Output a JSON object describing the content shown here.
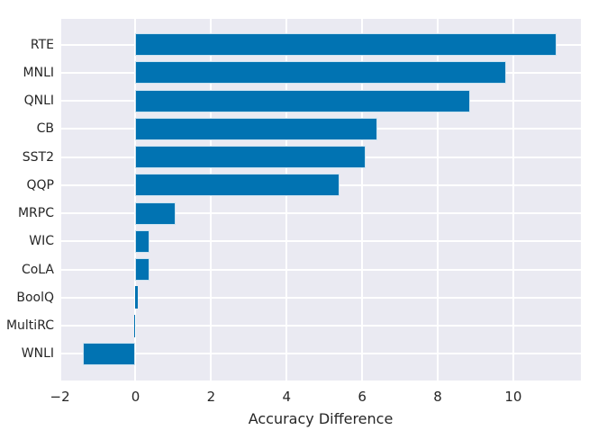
{
  "figure": {
    "background_color": "#ffffff",
    "plot_bg_color": "#eaeaf2",
    "grid_color": "#ffffff",
    "bar_color": "#0173b2",
    "bar_edge_color": "rgba(255,255,255,0.8)",
    "text_color": "#262626"
  },
  "chart_data": {
    "type": "bar",
    "orientation": "horizontal",
    "title": "",
    "xlabel": "Accuracy Difference",
    "ylabel": "",
    "categories": [
      "RTE",
      "MNLI",
      "QNLI",
      "CB",
      "SST2",
      "QQP",
      "MRPC",
      "WIC",
      "CoLA",
      "BoolQ",
      "MultiRC",
      "WNLI"
    ],
    "values": [
      11.15,
      9.8,
      8.85,
      6.4,
      6.1,
      5.4,
      1.05,
      0.38,
      0.36,
      0.07,
      -0.03,
      -1.39
    ],
    "x_ticks": [
      -2,
      0,
      2,
      4,
      6,
      8,
      10
    ],
    "x_tick_labels": [
      "−2",
      "0",
      "2",
      "4",
      "6",
      "8",
      "10"
    ],
    "xlim": [
      -1.99,
      11.79
    ],
    "grid": true,
    "grid_axis": "both",
    "legend": false
  }
}
